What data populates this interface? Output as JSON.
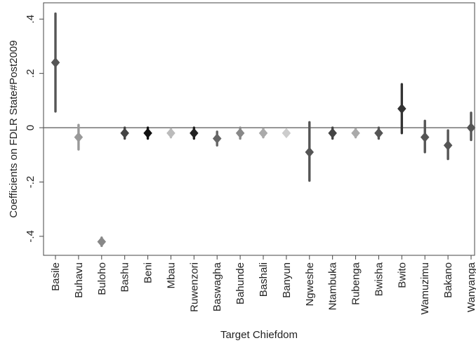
{
  "chart_data": {
    "type": "scatter",
    "xlabel": "Target Chiefdom",
    "ylabel": "Coefficients on FDLR State#Post2009",
    "ylim": [
      -0.47,
      0.46
    ],
    "yticks": [
      0.4,
      0.2,
      0,
      -0.2,
      -0.4
    ],
    "ytick_labels": [
      ".4",
      ".2",
      "0",
      "-.2",
      "-.4"
    ],
    "zero_line": true,
    "grid": false,
    "categories": [
      "Basile",
      "Buhavu",
      "Buloho",
      "Bashu",
      "Beni",
      "Mbau",
      "Ruwenzori",
      "Baswagha",
      "Bahunde",
      "Bashali",
      "Banyun",
      "Ngweshe",
      "Ntambuka",
      "Rubenga",
      "Bwisha",
      "Bwito",
      "Wamuzimu",
      "Bakano",
      "Wanyanga"
    ],
    "points": [
      {
        "coef": 0.24,
        "ci_low": 0.06,
        "ci_high": 0.42,
        "shade": "#555555"
      },
      {
        "coef": -0.035,
        "ci_low": -0.08,
        "ci_high": 0.01,
        "shade": "#999999"
      },
      {
        "coef": -0.42,
        "ci_low": -0.435,
        "ci_high": -0.405,
        "shade": "#888888"
      },
      {
        "coef": -0.02,
        "ci_low": -0.04,
        "ci_high": 0.0,
        "shade": "#444444"
      },
      {
        "coef": -0.02,
        "ci_low": -0.04,
        "ci_high": 0.0,
        "shade": "#111111"
      },
      {
        "coef": -0.02,
        "ci_low": -0.035,
        "ci_high": -0.005,
        "shade": "#bbbbbb"
      },
      {
        "coef": -0.02,
        "ci_low": -0.04,
        "ci_high": 0.0,
        "shade": "#222222"
      },
      {
        "coef": -0.04,
        "ci_low": -0.065,
        "ci_high": -0.015,
        "shade": "#666666"
      },
      {
        "coef": -0.02,
        "ci_low": -0.04,
        "ci_high": 0.0,
        "shade": "#888888"
      },
      {
        "coef": -0.02,
        "ci_low": -0.035,
        "ci_high": -0.005,
        "shade": "#aaaaaa"
      },
      {
        "coef": -0.02,
        "ci_low": -0.03,
        "ci_high": -0.01,
        "shade": "#cccccc"
      },
      {
        "coef": -0.09,
        "ci_low": -0.195,
        "ci_high": 0.02,
        "shade": "#555555"
      },
      {
        "coef": -0.02,
        "ci_low": -0.04,
        "ci_high": 0.0,
        "shade": "#444444"
      },
      {
        "coef": -0.02,
        "ci_low": -0.035,
        "ci_high": -0.005,
        "shade": "#aaaaaa"
      },
      {
        "coef": -0.02,
        "ci_low": -0.04,
        "ci_high": 0.0,
        "shade": "#555555"
      },
      {
        "coef": 0.07,
        "ci_low": -0.02,
        "ci_high": 0.16,
        "shade": "#333333"
      },
      {
        "coef": -0.035,
        "ci_low": -0.09,
        "ci_high": 0.025,
        "shade": "#555555"
      },
      {
        "coef": -0.065,
        "ci_low": -0.115,
        "ci_high": -0.01,
        "shade": "#555555"
      },
      {
        "coef": 0.0,
        "ci_low": -0.045,
        "ci_high": 0.055,
        "shade": "#555555"
      }
    ]
  }
}
